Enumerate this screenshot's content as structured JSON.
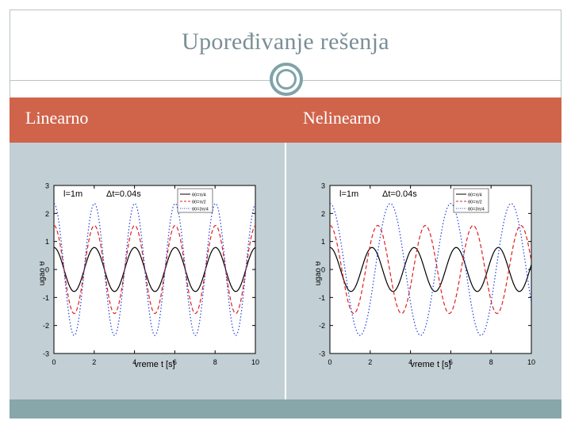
{
  "slide": {
    "title": "Upoređivanje rešenja",
    "left_label": "Linearno",
    "right_label": "Nelinearno"
  },
  "colors": {
    "accent_band": "#d0644b",
    "content_bg": "#c2cfd4",
    "footer": "#87a7aa",
    "series_black": "#000000",
    "series_red": "#e02020",
    "series_blue": "#2040e0"
  },
  "chart_data": [
    {
      "type": "line",
      "xlabel": "vreme t [s]",
      "ylabel": "ugao θ",
      "annotation_length": "l=1m",
      "annotation_step": "Δt=0.04s",
      "xlim": [
        0,
        10
      ],
      "ylim": [
        -3,
        3
      ],
      "xticks": [
        "0",
        "2",
        "4",
        "6",
        "8",
        "10"
      ],
      "yticks": [
        "3",
        "2",
        "1",
        "0",
        "-1",
        "-2",
        "-3"
      ],
      "series": [
        {
          "name": "θ0=π/4",
          "amplitude": 0.785,
          "period": 2.006,
          "style": "solid",
          "color": "#000000"
        },
        {
          "name": "θ0=π/2",
          "amplitude": 1.571,
          "period": 2.006,
          "style": "dashed",
          "color": "#e02020"
        },
        {
          "name": "θ0=3π/4",
          "amplitude": 2.356,
          "period": 2.006,
          "style": "dotted",
          "color": "#2040e0"
        }
      ]
    },
    {
      "type": "line",
      "xlabel": "vreme t [s]",
      "ylabel": "ugao θ",
      "annotation_length": "l=1m",
      "annotation_step": "Δt=0.04s",
      "xlim": [
        0,
        10
      ],
      "ylim": [
        -3,
        3
      ],
      "xticks": [
        "0",
        "2",
        "4",
        "6",
        "8",
        "10"
      ],
      "yticks": [
        "3",
        "2",
        "1",
        "0",
        "-1",
        "-2",
        "-3"
      ],
      "series": [
        {
          "name": "θ0=π/4",
          "amplitude": 0.785,
          "period": 2.09,
          "style": "solid",
          "color": "#000000"
        },
        {
          "name": "θ0=π/2",
          "amplitude": 1.571,
          "period": 2.37,
          "style": "dashed",
          "color": "#e02020"
        },
        {
          "name": "θ0=3π/4",
          "amplitude": 2.356,
          "period": 3.0,
          "style": "dotted",
          "color": "#2040e0"
        }
      ]
    }
  ]
}
